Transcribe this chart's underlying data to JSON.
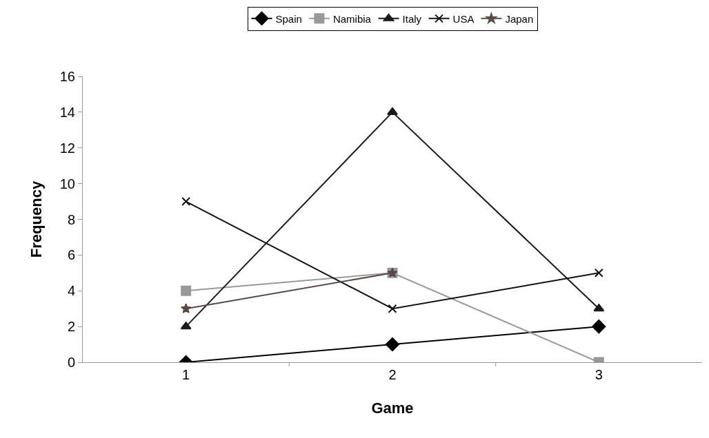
{
  "chart_data": {
    "type": "line",
    "xlabel": "Game",
    "ylabel": "Frequency",
    "categories": [
      "1",
      "2",
      "3"
    ],
    "ylim": [
      0,
      16
    ],
    "yticks": [
      0,
      2,
      4,
      6,
      8,
      10,
      12,
      14,
      16
    ],
    "grid": false,
    "legend": "top",
    "series": [
      {
        "name": "Spain",
        "color": "#000000",
        "marker": "diamond",
        "values": [
          0,
          1,
          2
        ]
      },
      {
        "name": "Namibia",
        "color": "#999999",
        "marker": "square",
        "values": [
          4,
          5,
          0
        ]
      },
      {
        "name": "Italy",
        "color": "#1a1a1a",
        "marker": "triangle",
        "values": [
          2,
          14,
          3
        ]
      },
      {
        "name": "USA",
        "color": "#111111",
        "marker": "cross",
        "values": [
          9,
          3,
          5
        ]
      },
      {
        "name": "Japan",
        "color": "#5a4a4a",
        "marker": "star",
        "values": [
          3,
          5,
          null
        ]
      }
    ]
  }
}
